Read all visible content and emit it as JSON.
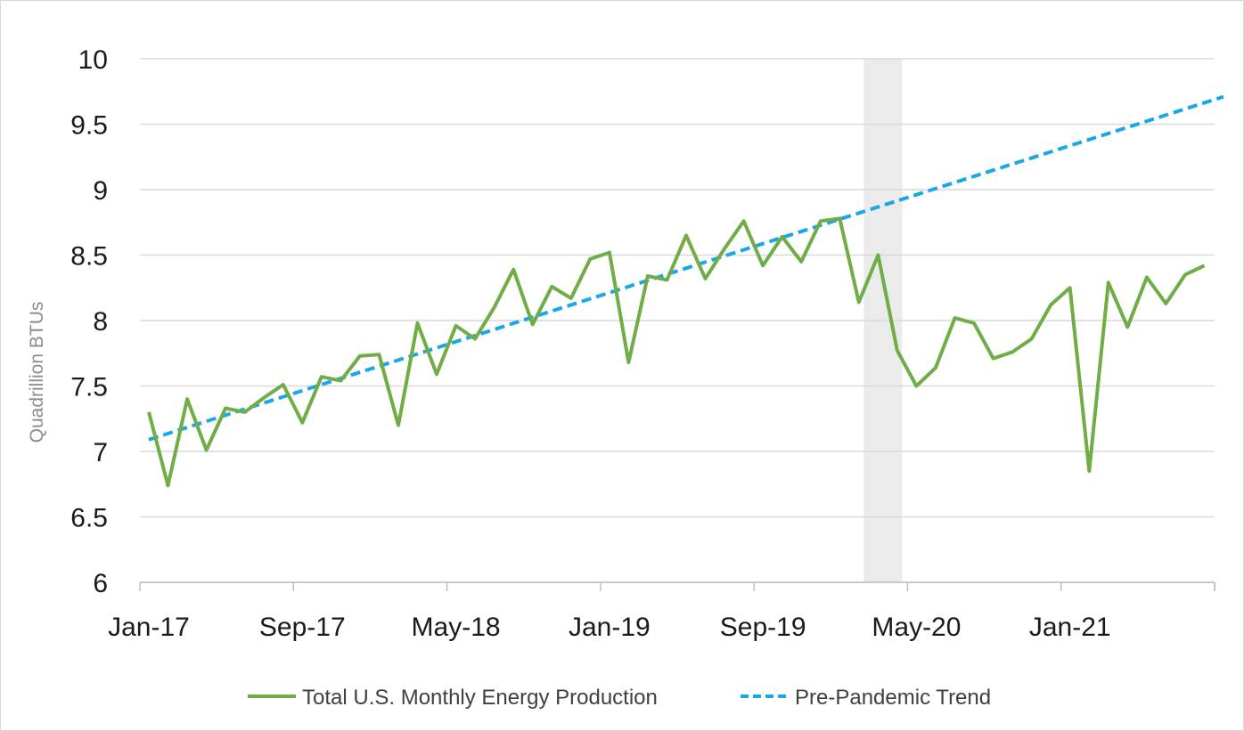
{
  "chart_data": {
    "type": "line",
    "title": "",
    "xlabel": "",
    "ylabel": "Quadrillion BTUs",
    "ylim": [
      6,
      10
    ],
    "yticks": [
      "6",
      "6.5",
      "7",
      "7.5",
      "8",
      "8.5",
      "9",
      "9.5",
      "10"
    ],
    "xticks": [
      "Jan-17",
      "Sep-17",
      "May-18",
      "Jan-19",
      "Sep-19",
      "May-20",
      "Jan-21"
    ],
    "x_start": "Jan-17",
    "x_end": "Sep-21",
    "grid": "horizontal",
    "legend": "bottom",
    "shaded_region": {
      "from": "Mar-20",
      "to": "May-20",
      "color": "#ebebeb"
    },
    "series": [
      {
        "name": "Total U.S. Monthly Energy Production",
        "color": "#70ad47",
        "style": "solid",
        "x": [
          "Jan-17",
          "Feb-17",
          "Mar-17",
          "Apr-17",
          "May-17",
          "Jun-17",
          "Jul-17",
          "Aug-17",
          "Sep-17",
          "Oct-17",
          "Nov-17",
          "Dec-17",
          "Jan-18",
          "Feb-18",
          "Mar-18",
          "Apr-18",
          "May-18",
          "Jun-18",
          "Jul-18",
          "Aug-18",
          "Sep-18",
          "Oct-18",
          "Nov-18",
          "Dec-18",
          "Jan-19",
          "Feb-19",
          "Mar-19",
          "Apr-19",
          "May-19",
          "Jun-19",
          "Jul-19",
          "Aug-19",
          "Sep-19",
          "Oct-19",
          "Nov-19",
          "Dec-19",
          "Jan-20",
          "Feb-20",
          "Mar-20",
          "Apr-20",
          "May-20",
          "Jun-20",
          "Jul-20",
          "Aug-20",
          "Sep-20",
          "Oct-20",
          "Nov-20",
          "Dec-20",
          "Jan-21",
          "Feb-21",
          "Mar-21",
          "Apr-21",
          "May-21",
          "Jun-21",
          "Jul-21",
          "Aug-21",
          "Sep-21"
        ],
        "values": [
          7.3,
          6.74,
          7.4,
          7.01,
          7.33,
          7.3,
          7.41,
          7.51,
          7.22,
          7.57,
          7.54,
          7.73,
          7.74,
          7.2,
          7.98,
          7.59,
          7.96,
          7.86,
          8.1,
          8.39,
          7.97,
          8.26,
          8.17,
          8.47,
          8.52,
          7.68,
          8.34,
          8.31,
          8.65,
          8.32,
          8.55,
          8.76,
          8.42,
          8.64,
          8.45,
          8.76,
          8.78,
          8.14,
          8.5,
          7.77,
          7.5,
          7.64,
          8.02,
          7.98,
          7.71,
          7.76,
          7.86,
          8.12,
          8.25,
          6.85,
          8.29,
          7.95,
          8.33,
          8.13,
          8.35,
          8.42,
          null
        ]
      },
      {
        "name": "Pre-Pandemic Trend",
        "color": "#1aa7e8",
        "style": "dashed",
        "x": [
          "Jan-17",
          "Sep-21"
        ],
        "values": [
          7.09,
          9.71
        ]
      }
    ]
  }
}
